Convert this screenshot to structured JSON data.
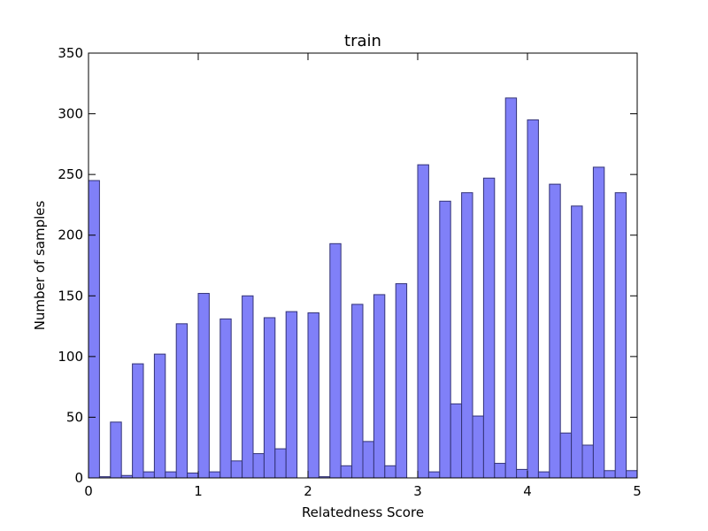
{
  "chart_data": {
    "type": "bar",
    "title": "train",
    "xlabel": "Relatedness Score",
    "ylabel": "Number of samples",
    "xlim": [
      0,
      5
    ],
    "ylim": [
      0,
      350
    ],
    "xticks": [
      "0",
      "1",
      "2",
      "3",
      "4",
      "5"
    ],
    "yticks": [
      "0",
      "50",
      "100",
      "150",
      "200",
      "250",
      "300",
      "350"
    ],
    "bin_width": 0.1,
    "x": [
      0.0,
      0.1,
      0.2,
      0.3,
      0.4,
      0.5,
      0.6,
      0.7,
      0.8,
      0.9,
      1.0,
      1.1,
      1.2,
      1.3,
      1.4,
      1.5,
      1.6,
      1.7,
      1.8,
      1.9,
      2.0,
      2.1,
      2.2,
      2.3,
      2.4,
      2.5,
      2.6,
      2.7,
      2.8,
      2.9,
      3.0,
      3.1,
      3.2,
      3.3,
      3.4,
      3.5,
      3.6,
      3.7,
      3.8,
      3.9,
      4.0,
      4.1,
      4.2,
      4.3,
      4.4,
      4.5,
      4.6,
      4.7,
      4.8,
      4.9
    ],
    "values": [
      245,
      1,
      46,
      2,
      94,
      5,
      102,
      5,
      127,
      4,
      152,
      5,
      131,
      14,
      150,
      20,
      132,
      24,
      137,
      0,
      136,
      1,
      193,
      10,
      143,
      30,
      151,
      10,
      160,
      0,
      258,
      5,
      228,
      61,
      235,
      51,
      247,
      12,
      313,
      7,
      295,
      5,
      242,
      37,
      224,
      27,
      256,
      6,
      235,
      6
    ],
    "colors": {
      "fill": "#8080f8",
      "edge": "#333377"
    },
    "grid": false,
    "legend": "none"
  }
}
